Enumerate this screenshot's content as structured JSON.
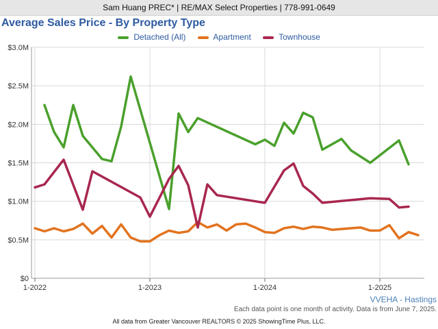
{
  "header": {
    "banner_text": "Sam Huang PREC* | RE/MAX Select Properties | 778-991-0649"
  },
  "footer": {
    "region": "VVEHA - Hastings",
    "note": "Each data point is one month of activity. Data is from June 7, 2025.",
    "copyright": "All data from Greater Vancouver REALTORS © 2025 ShowingTime Plus, LLC."
  },
  "chart_data": {
    "type": "line",
    "title": "Average Sales Price - By Property Type",
    "xlabel": "",
    "ylabel": "",
    "ylim": [
      0,
      3000000
    ],
    "y_ticks": [
      0,
      500000,
      1000000,
      1500000,
      2000000,
      2500000,
      3000000
    ],
    "y_tick_labels": [
      "$0",
      "$0.5M",
      "$1.0M",
      "$1.5M",
      "$2.0M",
      "$2.5M",
      "$3.0M"
    ],
    "x_ticks": [
      "2022-01",
      "2023-01",
      "2024-01",
      "2025-01"
    ],
    "x_tick_labels": [
      "1-2022",
      "1-2023",
      "1-2024",
      "1-2025"
    ],
    "xlim": [
      "2022-01",
      "2025-05"
    ],
    "grid": true,
    "legend": "top-center",
    "series": [
      {
        "name": "Detached (All)",
        "color": "#4aa02c",
        "points": [
          [
            "2022-02",
            2250000
          ],
          [
            "2022-03",
            1900000
          ],
          [
            "2022-04",
            1700000
          ],
          [
            "2022-05",
            2250000
          ],
          [
            "2022-06",
            1850000
          ],
          [
            "2022-08",
            1550000
          ],
          [
            "2022-09",
            1520000
          ],
          [
            "2022-10",
            1970000
          ],
          [
            "2022-11",
            2620000
          ],
          [
            "2023-03",
            900000
          ],
          [
            "2023-04",
            2140000
          ],
          [
            "2023-05",
            1900000
          ],
          [
            "2023-06",
            2080000
          ],
          [
            "2023-12",
            1740000
          ],
          [
            "2024-01",
            1800000
          ],
          [
            "2024-02",
            1720000
          ],
          [
            "2024-03",
            2020000
          ],
          [
            "2024-04",
            1880000
          ],
          [
            "2024-05",
            2150000
          ],
          [
            "2024-06",
            2090000
          ],
          [
            "2024-07",
            1670000
          ],
          [
            "2024-09",
            1810000
          ],
          [
            "2024-10",
            1660000
          ],
          [
            "2024-12",
            1500000
          ],
          [
            "2025-03",
            1790000
          ],
          [
            "2025-04",
            1480000
          ]
        ]
      },
      {
        "name": "Apartment",
        "color": "#e2731e",
        "points": [
          [
            "2022-01",
            650000
          ],
          [
            "2022-02",
            610000
          ],
          [
            "2022-03",
            650000
          ],
          [
            "2022-04",
            610000
          ],
          [
            "2022-05",
            640000
          ],
          [
            "2022-06",
            710000
          ],
          [
            "2022-07",
            580000
          ],
          [
            "2022-08",
            680000
          ],
          [
            "2022-09",
            530000
          ],
          [
            "2022-10",
            700000
          ],
          [
            "2022-11",
            530000
          ],
          [
            "2022-12",
            480000
          ],
          [
            "2023-01",
            480000
          ],
          [
            "2023-02",
            560000
          ],
          [
            "2023-03",
            620000
          ],
          [
            "2023-04",
            590000
          ],
          [
            "2023-05",
            610000
          ],
          [
            "2023-06",
            730000
          ],
          [
            "2023-07",
            660000
          ],
          [
            "2023-08",
            700000
          ],
          [
            "2023-09",
            620000
          ],
          [
            "2023-10",
            700000
          ],
          [
            "2023-11",
            710000
          ],
          [
            "2023-12",
            660000
          ],
          [
            "2024-01",
            600000
          ],
          [
            "2024-02",
            590000
          ],
          [
            "2024-03",
            650000
          ],
          [
            "2024-04",
            670000
          ],
          [
            "2024-05",
            640000
          ],
          [
            "2024-06",
            670000
          ],
          [
            "2024-07",
            660000
          ],
          [
            "2024-08",
            630000
          ],
          [
            "2024-09",
            640000
          ],
          [
            "2024-10",
            650000
          ],
          [
            "2024-11",
            660000
          ],
          [
            "2024-12",
            620000
          ],
          [
            "2025-01",
            620000
          ],
          [
            "2025-02",
            690000
          ],
          [
            "2025-03",
            520000
          ],
          [
            "2025-04",
            600000
          ],
          [
            "2025-05",
            560000
          ]
        ]
      },
      {
        "name": "Townhouse",
        "color": "#a8274f",
        "points": [
          [
            "2022-01",
            1180000
          ],
          [
            "2022-02",
            1220000
          ],
          [
            "2022-04",
            1540000
          ],
          [
            "2022-06",
            890000
          ],
          [
            "2022-07",
            1390000
          ],
          [
            "2022-12",
            1050000
          ],
          [
            "2023-01",
            800000
          ],
          [
            "2023-03",
            1290000
          ],
          [
            "2023-04",
            1460000
          ],
          [
            "2023-05",
            1210000
          ],
          [
            "2023-06",
            660000
          ],
          [
            "2023-07",
            1220000
          ],
          [
            "2023-08",
            1080000
          ],
          [
            "2024-01",
            980000
          ],
          [
            "2024-03",
            1400000
          ],
          [
            "2024-04",
            1490000
          ],
          [
            "2024-05",
            1200000
          ],
          [
            "2024-06",
            1100000
          ],
          [
            "2024-07",
            980000
          ],
          [
            "2024-12",
            1040000
          ],
          [
            "2025-02",
            1030000
          ],
          [
            "2025-03",
            920000
          ],
          [
            "2025-04",
            930000
          ]
        ]
      }
    ]
  }
}
